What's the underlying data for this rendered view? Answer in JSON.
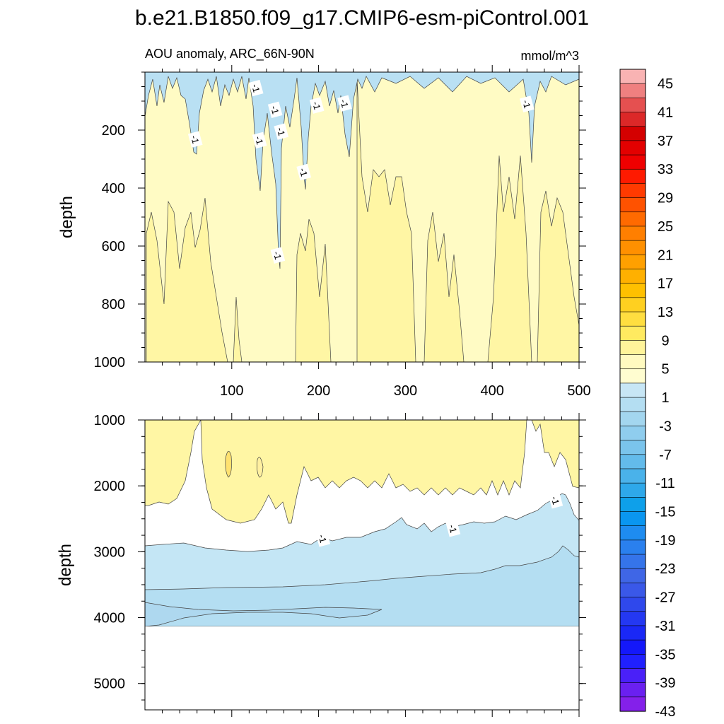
{
  "chart_data": {
    "type": "heatmap",
    "title": "b.e21.B1850.f09_g17.CMIP6-esm-piControl.001",
    "subtitle": "AOU anomaly, ARC_66N-90N",
    "units": "mmol/m^3",
    "colorbar": {
      "labels": [
        "45",
        "41",
        "37",
        "33",
        "29",
        "25",
        "21",
        "17",
        "13",
        "9",
        "5",
        "1",
        "-3",
        "-7",
        "-11",
        "-15",
        "-19",
        "-23",
        "-27",
        "-31",
        "-35",
        "-39",
        "-43"
      ],
      "colors": [
        "#f9b3b3",
        "#ef8080",
        "#e55050",
        "#dc2828",
        "#d40000",
        "#e30000",
        "#ef0000",
        "#fe1a00",
        "#ff3a00",
        "#ff5200",
        "#ff6a00",
        "#ff7f00",
        "#ff9000",
        "#ffa000",
        "#ffb000",
        "#ffc000",
        "#ffd020",
        "#ffde40",
        "#ffea60",
        "#fff49a",
        "#fffac0",
        "#fffdd0",
        "#c7e6f5",
        "#b4def2",
        "#a3d6ef",
        "#8fcdee",
        "#7ac4ec",
        "#63bbeb",
        "#4ab2ea",
        "#2ea8ea",
        "#0ea0ea",
        "#0a96f0",
        "#1e8cf0",
        "#2a80ee",
        "#3574ea",
        "#3f66e6",
        "#3a58e8",
        "#2f48ec",
        "#2438f2",
        "#1a28f6",
        "#1418fa",
        "#2020ff",
        "#4a20f8",
        "#6a20f0",
        "#8420ea"
      ]
    },
    "panels": [
      {
        "ylabel": "depth",
        "ylim": [
          0,
          1000
        ],
        "yticks": [
          200,
          400,
          600,
          800,
          1000
        ],
        "xlim": [
          0,
          500
        ],
        "xticks": [
          100,
          200,
          300,
          400,
          500
        ],
        "contour_labels": [
          {
            "text": "-1",
            "x": 128,
            "y": 55
          },
          {
            "text": "-1",
            "x": 150,
            "y": 130
          },
          {
            "text": "-1",
            "x": 157,
            "y": 205
          },
          {
            "text": "-1",
            "x": 132,
            "y": 235
          },
          {
            "text": "-1",
            "x": 58,
            "y": 232
          },
          {
            "text": "-1",
            "x": 198,
            "y": 115
          },
          {
            "text": "-1",
            "x": 230,
            "y": 108
          },
          {
            "text": "-1",
            "x": 183,
            "y": 345
          },
          {
            "text": "-1",
            "x": 440,
            "y": 110
          },
          {
            "text": "-1",
            "x": 153,
            "y": 632
          }
        ]
      },
      {
        "ylabel": "depth",
        "ylim": [
          1000,
          5400
        ],
        "yticks": [
          1000,
          2000,
          3000,
          4000,
          5000
        ],
        "xlim": [
          0,
          500
        ],
        "xticks": [],
        "contour_labels": [
          {
            "text": "-1",
            "x": 205,
            "y": 2800
          },
          {
            "text": "-1",
            "x": 355,
            "y": 2650
          },
          {
            "text": "-1",
            "x": 473,
            "y": 2220
          }
        ]
      }
    ]
  }
}
